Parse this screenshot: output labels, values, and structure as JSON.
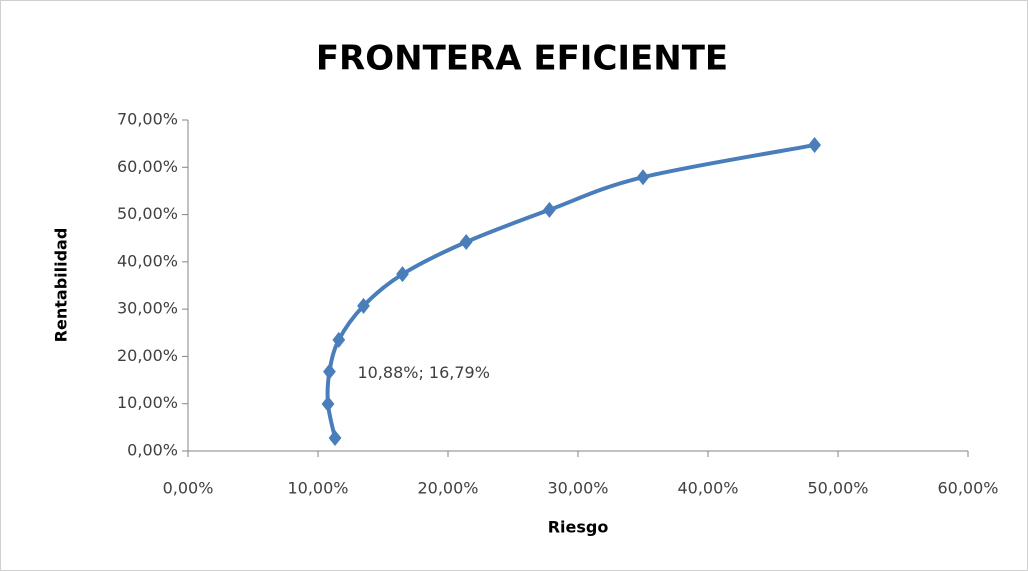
{
  "chart_data": {
    "type": "scatter",
    "title": "FRONTERA EFICIENTE",
    "x_label": "Riesgo",
    "y_label": "Rentabilidad",
    "series": [
      {
        "color": "#4a7ebb",
        "x": [
          11.31,
          10.77,
          10.88,
          11.6,
          13.5,
          16.5,
          21.4,
          27.8,
          35.0,
          48.2
        ],
        "values": [
          2.75,
          9.94,
          16.79,
          23.5,
          30.7,
          37.4,
          44.2,
          51.0,
          57.9,
          64.7
        ],
        "value_labels": [
          null,
          null,
          "10,88%; 16,79%",
          null,
          null,
          null,
          null,
          null,
          null,
          null
        ]
      }
    ],
    "xlim": [
      0,
      60
    ],
    "xticks": [
      {
        "value": 0,
        "label": "0,00%"
      },
      {
        "value": 10,
        "label": "10,00%"
      },
      {
        "value": 20,
        "label": "20,00%"
      },
      {
        "value": 30,
        "label": "30,00%"
      },
      {
        "value": 40,
        "label": "40,00%"
      },
      {
        "value": 50,
        "label": "50,00%"
      },
      {
        "value": 60,
        "label": "60,00%"
      }
    ],
    "ylim": [
      0,
      70
    ],
    "yticks": [
      {
        "value": 0,
        "label": "0,00%"
      },
      {
        "value": 10,
        "label": "10,00%"
      },
      {
        "value": 20,
        "label": "20,00%"
      },
      {
        "value": 30,
        "label": "30,00%"
      },
      {
        "value": 40,
        "label": "40,00%"
      },
      {
        "value": 50,
        "label": "50,00%"
      },
      {
        "value": 60,
        "label": "60,00%"
      },
      {
        "value": 70,
        "label": "70,00%"
      }
    ],
    "smooth": true,
    "grid": false
  }
}
